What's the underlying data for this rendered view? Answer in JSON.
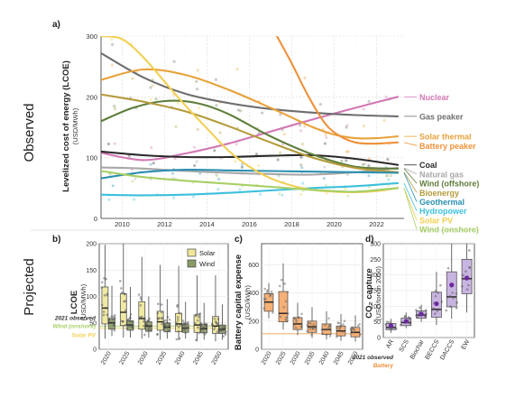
{
  "figure": {
    "row_labels": {
      "observed": "Observed",
      "projected": "Projected"
    }
  },
  "chart_data": [
    {
      "panel": "a)",
      "type": "line",
      "ylabel": "Levelized cost of energy (LCOE)",
      "ylabel_unit": "(USD/MWh)",
      "ylim": [
        0,
        300
      ],
      "xlim": [
        2009,
        2023.3
      ],
      "x_ticks": [
        2010,
        2012,
        2014,
        2016,
        2018,
        2020,
        2022
      ],
      "y_ticks": [
        0,
        100,
        200,
        300
      ],
      "grid": true,
      "legend": "direct labels at right end of each line",
      "series": [
        {
          "name": "Nuclear",
          "color": "#d278b4",
          "x": [
            2009,
            2011,
            2013,
            2015,
            2017,
            2019,
            2021,
            2023
          ],
          "y": [
            108,
            96,
            107,
            123,
            143,
            163,
            182,
            200
          ]
        },
        {
          "name": "Gas peaker",
          "color": "#6e6e6e",
          "x": [
            2009,
            2011,
            2013,
            2015,
            2017,
            2019,
            2021,
            2023
          ],
          "y": [
            272,
            232,
            205,
            190,
            180,
            174,
            170,
            168
          ]
        },
        {
          "name": "Solar thermal",
          "color": "#e8a23c",
          "x": [
            2009,
            2011,
            2013,
            2015,
            2017,
            2018,
            2019,
            2020,
            2021,
            2022,
            2023
          ],
          "y": [
            228,
            245,
            236,
            212,
            182,
            166,
            150,
            138,
            132,
            132,
            135
          ]
        },
        {
          "name": "Battery peaker",
          "color": "#f0913a",
          "x": [
            2017.3,
            2018,
            2018.8,
            2019.6,
            2020.3,
            2021,
            2021.8,
            2023
          ],
          "y": [
            300,
            255,
            200,
            155,
            135,
            125,
            123,
            125
          ]
        },
        {
          "name": "Coal",
          "color": "#2a2a2a",
          "x": [
            2009,
            2011,
            2013,
            2015,
            2017,
            2019,
            2021,
            2023
          ],
          "y": [
            110,
            104,
            101,
            101,
            103,
            104,
            98,
            88
          ]
        },
        {
          "name": "Natural gas",
          "color": "#a8a8a8",
          "x": [
            2009,
            2011,
            2013,
            2015,
            2017,
            2019,
            2021,
            2023
          ],
          "y": [
            84,
            82,
            78,
            75,
            73,
            72,
            76,
            83
          ]
        },
        {
          "name": "Wind (offshore)",
          "color": "#5e7d3a",
          "x": [
            2009,
            2010.5,
            2012,
            2013.5,
            2015,
            2017,
            2019,
            2021,
            2023
          ],
          "y": [
            160,
            182,
            193,
            190,
            172,
            135,
            105,
            85,
            82
          ]
        },
        {
          "name": "Bioenergy",
          "color": "#b49a3a",
          "x": [
            2009,
            2011,
            2013,
            2015,
            2017,
            2019,
            2021,
            2023
          ],
          "y": [
            204,
            192,
            176,
            152,
            125,
            100,
            83,
            76
          ]
        },
        {
          "name": "Geothermal",
          "color": "#2a8fb0",
          "x": [
            2009,
            2011,
            2013,
            2015,
            2017,
            2019,
            2021,
            2023
          ],
          "y": [
            66,
            76,
            80,
            79,
            78,
            77,
            76,
            75
          ]
        },
        {
          "name": "Hydropower",
          "color": "#3cc0dc",
          "x": [
            2009,
            2011,
            2013,
            2015,
            2017,
            2019,
            2021,
            2023
          ],
          "y": [
            39,
            38,
            39,
            42,
            46,
            50,
            53,
            58
          ]
        },
        {
          "name": "Solar PV",
          "color": "#f3cf52",
          "x": [
            2009,
            2010,
            2011,
            2012,
            2013,
            2014,
            2015,
            2016,
            2017,
            2018,
            2019,
            2020,
            2021,
            2022,
            2023
          ],
          "y": [
            300,
            295,
            265,
            225,
            185,
            148,
            112,
            85,
            66,
            54,
            47,
            44,
            43,
            45,
            50
          ]
        },
        {
          "name": "Wind (onshore)",
          "color": "#a7cf66",
          "x": [
            2009,
            2011,
            2013,
            2015,
            2017,
            2019,
            2021,
            2023
          ],
          "y": [
            78,
            68,
            62,
            57,
            52,
            47,
            44,
            50
          ]
        }
      ]
    },
    {
      "panel": "b)",
      "type": "box",
      "ylabel": "LCOE",
      "ylabel_unit": "(USD/MWh)",
      "ylim": [
        0,
        200
      ],
      "y_ticks": [
        0,
        50,
        100,
        150,
        200
      ],
      "categories": [
        "2020",
        "2025",
        "2030",
        "2035",
        "2040",
        "2045",
        "2050"
      ],
      "legend": "top-right",
      "reference_note": "2021 observed",
      "reference_lines": [
        {
          "name": "Wind (onshore)",
          "color": "#a7cf66",
          "value": 44
        },
        {
          "name": "Solar PV",
          "color": "#f3cf52",
          "value": 40
        }
      ],
      "series": [
        {
          "name": "Solar",
          "color": "#efe79a",
          "boxes": [
            [
              20,
              48,
              78,
              118,
              198
            ],
            [
              22,
              45,
              70,
              105,
              200
            ],
            [
              20,
              38,
              58,
              90,
              175
            ],
            [
              18,
              36,
              52,
              72,
              160
            ],
            [
              17,
              33,
              48,
              68,
              158
            ],
            [
              15,
              32,
              46,
              65,
              140
            ],
            [
              15,
              30,
              44,
              62,
              140
            ]
          ]
        },
        {
          "name": "Wind",
          "color": "#8a9968",
          "boxes": [
            [
              25,
              38,
              50,
              58,
              120
            ],
            [
              22,
              36,
              46,
              54,
              118
            ],
            [
              22,
              34,
              44,
              52,
              100
            ],
            [
              20,
              33,
              42,
              50,
              95
            ],
            [
              20,
              32,
              40,
              48,
              90
            ],
            [
              18,
              31,
              39,
              47,
              88
            ],
            [
              18,
              30,
              38,
              46,
              85
            ]
          ]
        }
      ]
    },
    {
      "panel": "c)",
      "type": "box",
      "ylabel": "Battery capital expense",
      "ylabel_unit": "(USD/kWh)",
      "ylim": [
        0,
        750
      ],
      "y_ticks": [
        0,
        200,
        400,
        600
      ],
      "categories": [
        "2020",
        "2025",
        "2030",
        "2035",
        "2040",
        "2045",
        "2050"
      ],
      "reference_note": "2021 observed",
      "reference_lines": [
        {
          "name": "Battery",
          "color": "#f0913a",
          "value": 110
        }
      ],
      "series": [
        {
          "name": "Battery",
          "color": "#f5a868",
          "boxes": [
            [
              220,
              270,
              335,
              395,
              470
            ],
            [
              140,
              195,
              255,
              410,
              610
            ],
            [
              100,
              140,
              180,
              225,
              330
            ],
            [
              80,
              120,
              160,
              200,
              300
            ],
            [
              70,
              105,
              140,
              180,
              270
            ],
            [
              60,
              95,
              130,
              165,
              250
            ],
            [
              55,
              88,
              120,
              155,
              240
            ]
          ]
        }
      ]
    },
    {
      "panel": "d)",
      "type": "box",
      "ylabel": "CO₂ capture",
      "ylabel_unit": "(USD/ton in 2050)",
      "ylim": [
        0,
        300
      ],
      "y_ticks": [
        0,
        50,
        100,
        150,
        200,
        250,
        300
      ],
      "categories": [
        "AR",
        "SCS",
        "Biochar",
        "BECCS",
        "DACCS",
        "EW"
      ],
      "series": [
        {
          "name": "CO₂ capture",
          "color": "#c4aede",
          "means": [
            38,
            52,
            75,
            108,
            168,
            190
          ],
          "boxes": [
            [
              15,
              25,
              32,
              45,
              60
            ],
            [
              30,
              38,
              48,
              62,
              80
            ],
            [
              50,
              62,
              72,
              85,
              105
            ],
            [
              40,
              65,
              90,
              145,
              210
            ],
            [
              60,
              98,
              130,
              210,
              300
            ],
            [
              80,
              140,
              188,
              250,
              300
            ]
          ]
        }
      ]
    }
  ]
}
